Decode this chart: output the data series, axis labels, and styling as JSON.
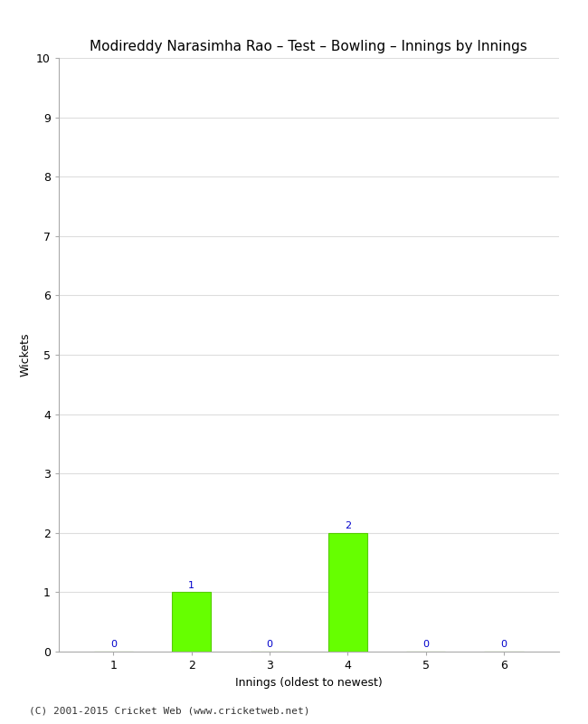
{
  "title": "Modireddy Narasimha Rao – Test – Bowling – Innings by Innings",
  "xlabel": "Innings (oldest to newest)",
  "ylabel": "Wickets",
  "categories": [
    1,
    2,
    3,
    4,
    5,
    6
  ],
  "values": [
    0,
    1,
    0,
    2,
    0,
    0
  ],
  "bar_color": "#66ff00",
  "bar_edge_color": "#55cc00",
  "annotation_color": "#0000cc",
  "annotation_fontsize": 8,
  "ylim": [
    0,
    10
  ],
  "yticks": [
    0,
    1,
    2,
    3,
    4,
    5,
    6,
    7,
    8,
    9,
    10
  ],
  "xticks": [
    1,
    2,
    3,
    4,
    5,
    6
  ],
  "background_color": "#ffffff",
  "grid_color": "#dddddd",
  "title_fontsize": 11,
  "axis_label_fontsize": 9,
  "tick_fontsize": 9,
  "footer": "(C) 2001-2015 Cricket Web (www.cricketweb.net)",
  "footer_fontsize": 8
}
